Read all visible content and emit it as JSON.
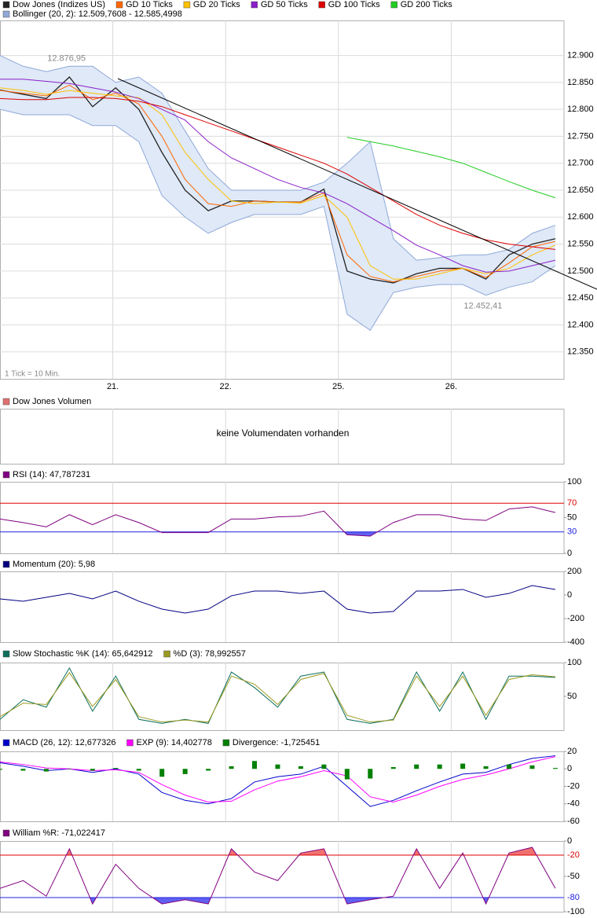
{
  "chart_data": [
    {
      "type": "line",
      "x": [
        0,
        8,
        16,
        24,
        32,
        40,
        48,
        56,
        64,
        72,
        80,
        88,
        96,
        104,
        112,
        120,
        128,
        136,
        144,
        152,
        160,
        168,
        176,
        184,
        192
      ],
      "xlim": [
        0,
        195
      ],
      "xticks": [
        {
          "value": 39,
          "label": "21."
        },
        {
          "value": 78,
          "label": "22."
        },
        {
          "value": 117,
          "label": "25."
        },
        {
          "value": 156,
          "label": "26."
        }
      ],
      "ylim": [
        12300,
        12965
      ],
      "yticks": [
        {
          "value": 12350,
          "label": "12.350"
        },
        {
          "value": 12400,
          "label": "12.400"
        },
        {
          "value": 12450,
          "label": "12.450"
        },
        {
          "value": 12500,
          "label": "12.500"
        },
        {
          "value": 12550,
          "label": "12.550"
        },
        {
          "value": 12600,
          "label": "12.600"
        },
        {
          "value": 12650,
          "label": "12.650"
        },
        {
          "value": 12700,
          "label": "12.700"
        },
        {
          "value": 12750,
          "label": "12.750"
        },
        {
          "value": 12800,
          "label": "12.800"
        },
        {
          "value": 12850,
          "label": "12.850"
        },
        {
          "value": 12900,
          "label": "12.900"
        }
      ],
      "grid": true,
      "series": [
        {
          "name": "Dow Jones (Indizes US)",
          "color": "#222222",
          "values": [
            12836,
            12828,
            12820,
            12860,
            12805,
            12840,
            12800,
            12720,
            12650,
            12612,
            12630,
            12630,
            12628,
            12628,
            12652,
            12500,
            12485,
            12478,
            12495,
            12505,
            12505,
            12485,
            12530,
            12550,
            12560
          ]
        },
        {
          "name": "GD 10 Ticks",
          "color": "#ff6600",
          "values": [
            12835,
            12830,
            12825,
            12845,
            12818,
            12830,
            12810,
            12750,
            12670,
            12625,
            12620,
            12630,
            12628,
            12628,
            12645,
            12530,
            12490,
            12480,
            12490,
            12500,
            12505,
            12488,
            12515,
            12545,
            12555
          ]
        },
        {
          "name": "GD 20 Ticks",
          "color": "#ffc000",
          "values": [
            12840,
            12835,
            12828,
            12835,
            12830,
            12825,
            12822,
            12790,
            12720,
            12670,
            12630,
            12625,
            12628,
            12626,
            12640,
            12600,
            12510,
            12485,
            12485,
            12495,
            12505,
            12495,
            12505,
            12530,
            12548
          ]
        },
        {
          "name": "GD 50 Ticks",
          "color": "#8a1ec8",
          "values": [
            12856,
            12856,
            12852,
            12848,
            12840,
            12832,
            12820,
            12800,
            12780,
            12740,
            12710,
            12690,
            12670,
            12655,
            12645,
            12625,
            12600,
            12575,
            12548,
            12530,
            12510,
            12498,
            12500,
            12510,
            12520
          ]
        },
        {
          "name": "GD 100 Ticks",
          "color": "#dd0000",
          "values": [
            12820,
            12818,
            12818,
            12822,
            12822,
            12820,
            12815,
            12805,
            12790,
            12775,
            12760,
            12745,
            12730,
            12715,
            12700,
            12680,
            12655,
            12630,
            12605,
            12585,
            12570,
            12558,
            12550,
            12545,
            12540
          ]
        },
        {
          "name": "GD 200 Ticks",
          "color": "#22cc22",
          "values": [
            null,
            null,
            null,
            null,
            null,
            null,
            null,
            null,
            null,
            null,
            null,
            null,
            null,
            null,
            null,
            12748,
            12740,
            12732,
            12722,
            12712,
            12700,
            12683,
            12666,
            12650,
            12636
          ]
        }
      ],
      "bollinger": {
        "name": "Bollinger (20, 2): 12.509,7608 - 12.585,4998",
        "color": "#8fa8d8",
        "fill": "#dfe9f7",
        "upper": [
          12900,
          12880,
          12870,
          12880,
          12880,
          12850,
          12860,
          12830,
          12760,
          12690,
          12650,
          12650,
          12650,
          12650,
          12665,
          12700,
          12740,
          12560,
          12520,
          12525,
          12530,
          12530,
          12540,
          12570,
          12585
        ],
        "lower": [
          12800,
          12790,
          12790,
          12790,
          12770,
          12770,
          12740,
          12640,
          12600,
          12570,
          12590,
          12605,
          12605,
          12605,
          12620,
          12420,
          12390,
          12460,
          12470,
          12475,
          12475,
          12455,
          12470,
          12480,
          12510
        ]
      },
      "annotations": [
        {
          "text": "12.876,95",
          "x": 23,
          "y": 12876.95,
          "position": "above"
        },
        {
          "text": "12.452,41",
          "x": 167,
          "y": 12452.41,
          "position": "below"
        }
      ],
      "footnote": "1 Tick = 10 Min."
    },
    {
      "type": "empty",
      "title": "Dow Jones Volumen",
      "color": "#e07070",
      "message": "keine Volumendaten vorhanden"
    },
    {
      "type": "line",
      "ylim": [
        0,
        100
      ],
      "yticks": [
        0,
        50,
        100
      ],
      "grid": false,
      "levels": [
        {
          "value": 70,
          "color": "#e00000",
          "fill": "#f07070",
          "side": "above"
        },
        {
          "value": 30,
          "color": "#2020e0",
          "fill": "#6060f0",
          "side": "below"
        }
      ],
      "series": [
        {
          "name": "RSI (14): 47,787231",
          "color": "#800080",
          "values": [
            48,
            43,
            37,
            54,
            40,
            54,
            43,
            29,
            29,
            29,
            48,
            48,
            51,
            52,
            59,
            26,
            24,
            43,
            54,
            54,
            48,
            46,
            62,
            65,
            57
          ]
        }
      ]
    },
    {
      "type": "line",
      "ylim": [
        -400,
        200
      ],
      "yticks": [
        -400,
        -200,
        0,
        200
      ],
      "grid": false,
      "series": [
        {
          "name": "Momentum (20): 5,98",
          "color": "#000080",
          "values": [
            -33,
            -53,
            -20,
            13,
            -33,
            33,
            -53,
            -120,
            -153,
            -120,
            -7,
            33,
            33,
            13,
            33,
            -120,
            -153,
            -140,
            33,
            33,
            47,
            -20,
            13,
            80,
            47
          ]
        }
      ]
    },
    {
      "type": "line",
      "ylim": [
        0,
        100
      ],
      "yticks": [
        50,
        100
      ],
      "grid": false,
      "series": [
        {
          "name": "Slow Stochastic %K (14): 65,642912",
          "color": "#0b6e5a",
          "values": [
            16,
            45,
            34,
            92,
            28,
            80,
            16,
            10,
            16,
            10,
            86,
            63,
            34,
            80,
            86,
            16,
            10,
            16,
            86,
            28,
            86,
            16,
            80,
            80,
            78
          ]
        },
        {
          "name": "%D (3): 78,992557",
          "color": "#9a9a20",
          "values": [
            20,
            40,
            38,
            85,
            35,
            75,
            20,
            12,
            15,
            12,
            80,
            68,
            38,
            75,
            84,
            22,
            12,
            15,
            80,
            35,
            80,
            22,
            75,
            82,
            79
          ]
        }
      ]
    },
    {
      "type": "line",
      "ylim": [
        -60,
        20
      ],
      "yticks": [
        -60,
        -40,
        -20,
        0,
        20
      ],
      "grid": false,
      "series": [
        {
          "name": "MACD (26, 12): 12,677326",
          "color": "#0000cc",
          "values": [
            7,
            3,
            -2,
            0,
            -4,
            0,
            -6,
            -27,
            -36,
            -40,
            -34,
            -15,
            -9,
            -6,
            3,
            -20,
            -43,
            -36,
            -25,
            -15,
            -6,
            -4,
            5,
            12,
            15
          ]
        },
        {
          "name": "EXP (9): 14,402778",
          "color": "#ff00ff",
          "values": [
            8,
            5,
            1,
            0,
            -2,
            -1,
            -4,
            -18,
            -30,
            -38,
            -37,
            -24,
            -14,
            -9,
            -2,
            -8,
            -32,
            -38,
            -30,
            -20,
            -12,
            -7,
            0,
            8,
            14
          ]
        },
        {
          "name": "Divergence: -1,725451",
          "color": "#008000",
          "type": "bar",
          "values": [
            -1,
            -2,
            -3,
            0,
            -2,
            1,
            -2,
            -9,
            -6,
            -2,
            3,
            9,
            5,
            3,
            5,
            -12,
            -11,
            2,
            5,
            5,
            6,
            3,
            5,
            4,
            1
          ]
        }
      ]
    },
    {
      "type": "line",
      "ylim": [
        -100,
        0
      ],
      "yticks": [
        -100,
        -50,
        0
      ],
      "grid": false,
      "levels": [
        {
          "value": -20,
          "color": "#e00000",
          "fill": "#f07070",
          "side": "above"
        },
        {
          "value": -80,
          "color": "#2020e0",
          "fill": "#6060f0",
          "side": "below"
        }
      ],
      "series": [
        {
          "name": "William %R: -71,022417",
          "color": "#800080",
          "values": [
            -67,
            -56,
            -78,
            -11,
            -89,
            -33,
            -67,
            -89,
            -83,
            -89,
            -11,
            -44,
            -56,
            -17,
            -11,
            -89,
            -83,
            -78,
            -11,
            -67,
            -17,
            -89,
            -17,
            -9,
            -67
          ]
        }
      ]
    }
  ]
}
